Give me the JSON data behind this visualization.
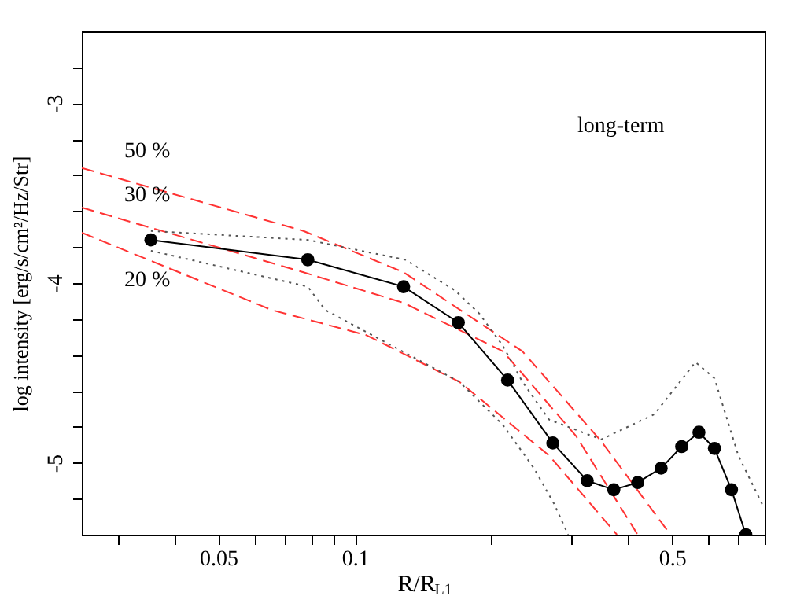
{
  "chart_data": {
    "type": "line",
    "xlabel": "R/R$_{L1}$",
    "ylabel": "log intensity [erg/s/cm²/Hz/Str]",
    "log": "x",
    "xlim": [
      0.025,
      0.8
    ],
    "ylim": [
      -5.4,
      -2.6
    ],
    "xticks": [
      {
        "value": 0.03,
        "label": null
      },
      {
        "value": 0.04,
        "label": null
      },
      0.05,
      {
        "value": 0.06,
        "label": null
      },
      {
        "value": 0.07,
        "label": null
      },
      {
        "value": 0.08,
        "label": null
      },
      {
        "value": 0.09,
        "label": null
      },
      0.1,
      {
        "value": 0.2,
        "label": null
      },
      {
        "value": 0.3,
        "label": null
      },
      {
        "value": 0.4,
        "label": null
      },
      0.5,
      {
        "value": 0.6,
        "label": null
      },
      {
        "value": 0.7,
        "label": null
      },
      {
        "value": 0.8,
        "label": null
      }
    ],
    "yticks": [
      {
        "value": -5.2,
        "label": null
      },
      -5,
      {
        "value": -4.8,
        "label": null
      },
      {
        "value": -4.6,
        "label": null
      },
      {
        "value": -4.4,
        "label": null
      },
      {
        "value": -4.2,
        "label": null
      },
      -4,
      {
        "value": -3.8,
        "label": null
      },
      {
        "value": -3.6,
        "label": null
      },
      {
        "value": -3.4,
        "label": null
      },
      {
        "value": -3.2,
        "label": null
      },
      -3,
      {
        "value": -2.8,
        "label": null
      }
    ],
    "grid": false,
    "annotations": [
      "long-term",
      "50 %",
      "30 %",
      "20 %"
    ],
    "series": [
      {
        "color": "#ff3333",
        "line_style": "dashed",
        "marker": "none",
        "x": [
          0.025,
          0.077,
          0.128,
          0.234,
          0.349,
          0.496
        ],
        "values": [
          -3.36,
          -3.71,
          -3.94,
          -4.38,
          -4.88,
          -5.4
        ]
      },
      {
        "color": "#ff3333",
        "line_style": "dashed",
        "marker": "none",
        "x": [
          0.025,
          0.077,
          0.128,
          0.212,
          0.307,
          0.42
        ],
        "values": [
          -3.58,
          -3.94,
          -4.11,
          -4.38,
          -4.85,
          -5.4
        ]
      },
      {
        "color": "#ff3333",
        "line_style": "dashed",
        "marker": "none",
        "x": [
          0.025,
          0.0656,
          0.106,
          0.17,
          0.268,
          0.378
        ],
        "values": [
          -3.72,
          -4.15,
          -4.29,
          -4.55,
          -4.96,
          -5.4
        ]
      },
      {
        "color": "#555555",
        "line_style": "dotted",
        "marker": "none",
        "x": [
          0.0355,
          0.0787,
          0.129,
          0.166,
          0.188,
          0.212,
          0.234,
          0.268,
          0.349,
          0.457,
          0.563,
          0.62,
          0.7,
          0.79
        ],
        "values": [
          -3.71,
          -3.76,
          -3.87,
          -4.04,
          -4.17,
          -4.35,
          -4.55,
          -4.76,
          -4.87,
          -4.73,
          -4.44,
          -4.53,
          -4.96,
          -5.23
        ]
      },
      {
        "color": "#555555",
        "line_style": "dotted",
        "marker": "none",
        "x": [
          0.0355,
          0.0787,
          0.086,
          0.17,
          0.212,
          0.248,
          0.275,
          0.295
        ],
        "values": [
          -3.82,
          -4.02,
          -4.15,
          -4.55,
          -4.79,
          -5.03,
          -5.23,
          -5.4
        ]
      },
      {
        "color": "#000000",
        "line_style": "solid",
        "marker": "circle",
        "x": [
          0.0355,
          0.0787,
          0.128,
          0.169,
          0.217,
          0.273,
          0.325,
          0.372,
          0.42,
          0.473,
          0.525,
          0.573,
          0.62,
          0.676,
          0.727
        ],
        "values": [
          -3.76,
          -3.87,
          -4.02,
          -4.22,
          -4.54,
          -4.89,
          -5.1,
          -5.15,
          -5.11,
          -5.03,
          -4.91,
          -4.83,
          -4.92,
          -5.15,
          -5.4
        ]
      }
    ]
  }
}
